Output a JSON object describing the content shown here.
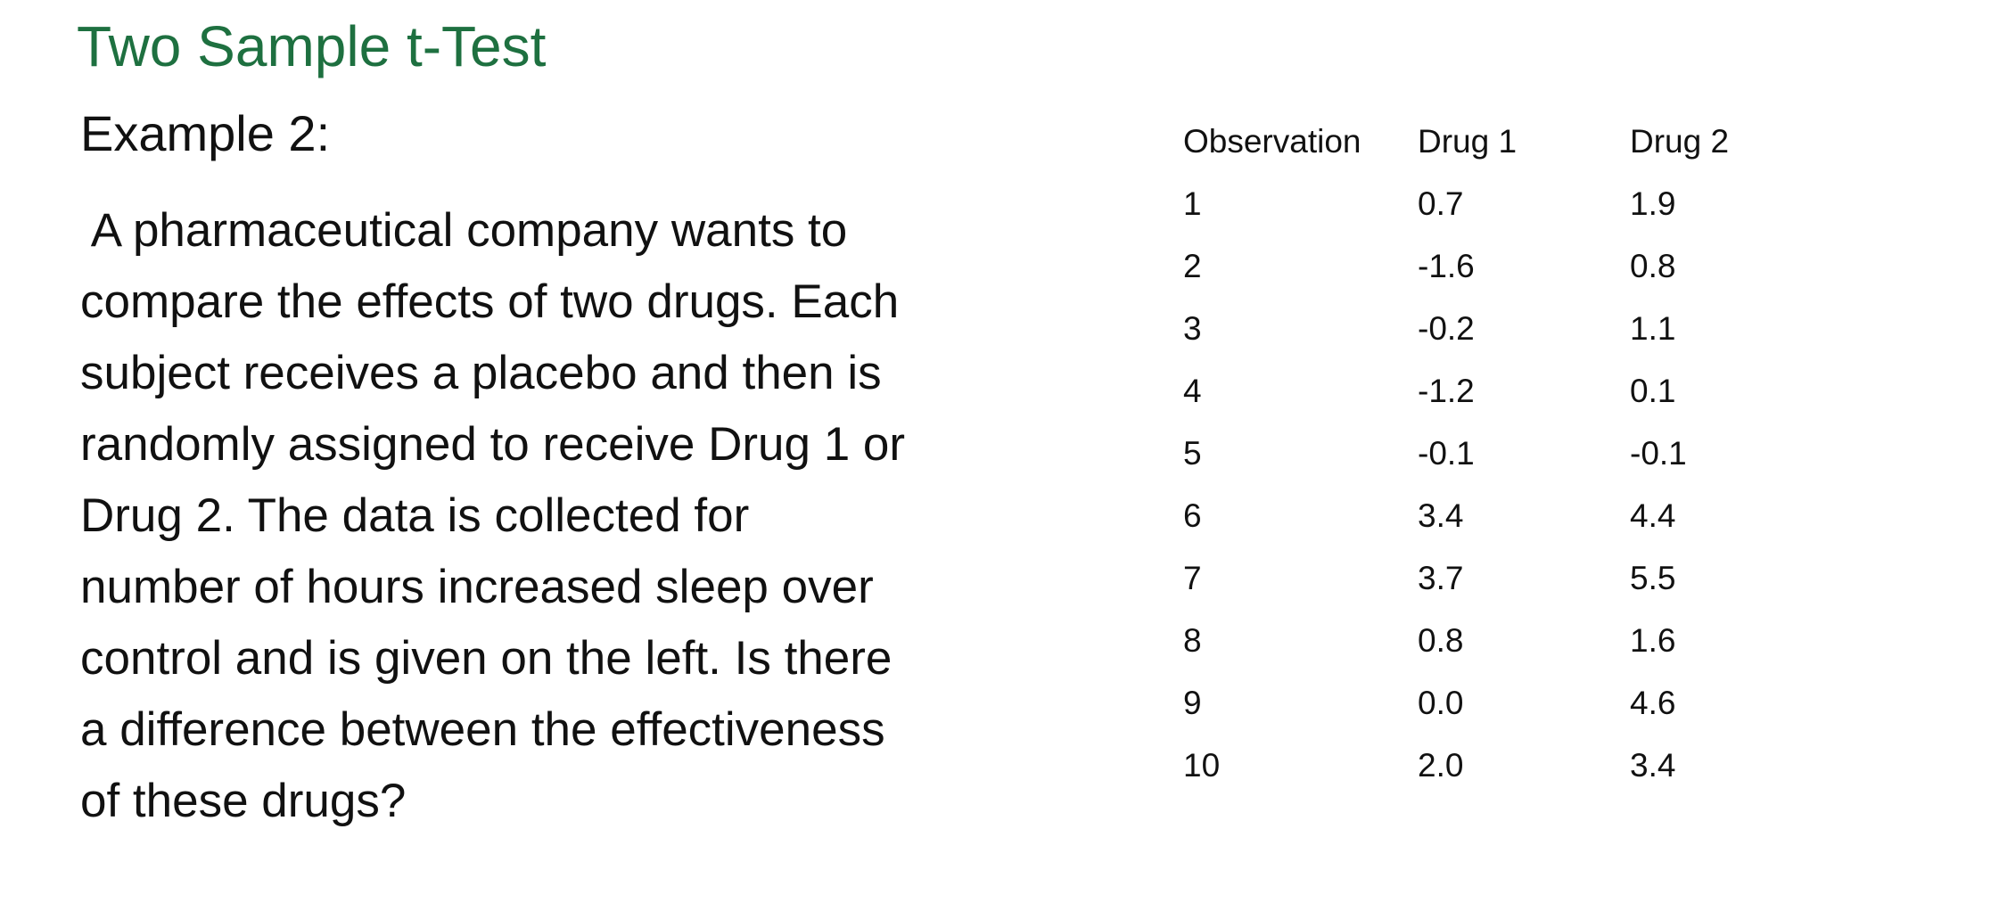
{
  "header": {
    "title": "Two Sample t-Test"
  },
  "body": {
    "heading": "Example 2:",
    "lines": [
      " A pharmaceutical company wants to",
      "compare the effects of two drugs. Each",
      "subject receives a placebo and then is",
      "randomly assigned to receive Drug 1 or",
      "Drug 2. The data is collected for",
      "number of hours increased sleep over",
      "control and is given on the left. Is there",
      "a difference between the effectiveness",
      "of these drugs?"
    ]
  },
  "table": {
    "columns": [
      "Observation",
      "Drug 1",
      "Drug 2"
    ],
    "rows": [
      [
        "1",
        "0.7",
        "1.9"
      ],
      [
        "2",
        "-1.6",
        "0.8"
      ],
      [
        "3",
        "-0.2",
        "1.1"
      ],
      [
        "4",
        "-1.2",
        "0.1"
      ],
      [
        "5",
        "-0.1",
        "-0.1"
      ],
      [
        "6",
        "3.4",
        "4.4"
      ],
      [
        "7",
        "3.7",
        "5.5"
      ],
      [
        "8",
        "0.8",
        "1.6"
      ],
      [
        "9",
        "0.0",
        "4.6"
      ],
      [
        "10",
        "2.0",
        "3.4"
      ]
    ]
  }
}
